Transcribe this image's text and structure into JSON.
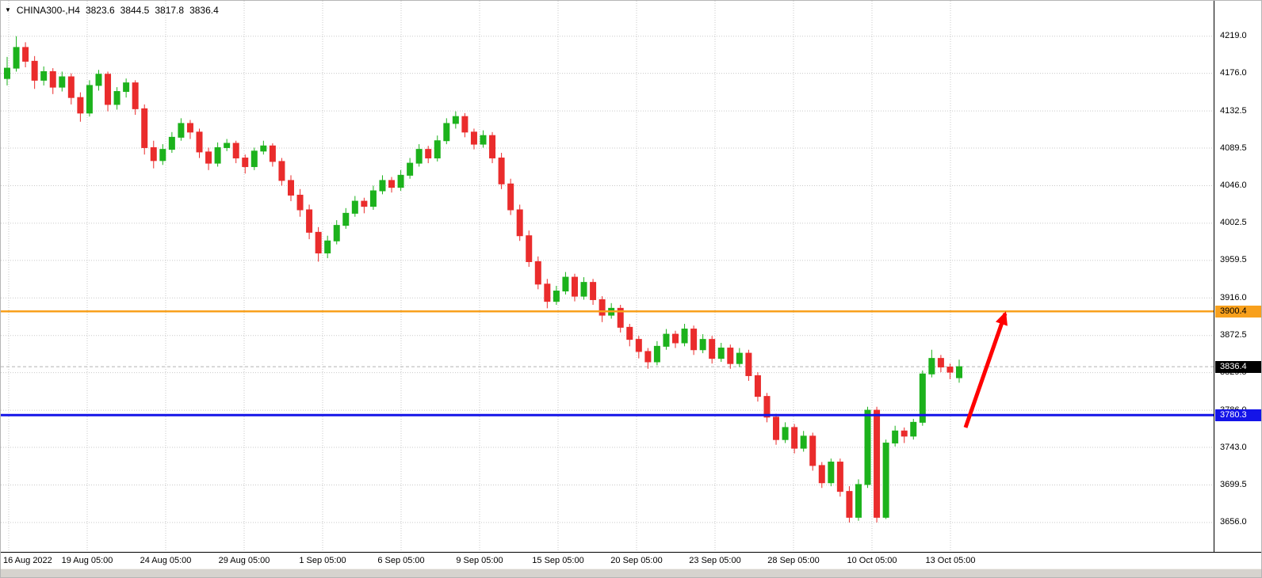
{
  "symbol_bar": {
    "dropdown_icon": "▼",
    "symbol": "CHINA300-,H4",
    "open": "3823.6",
    "high": "3844.5",
    "low": "3817.8",
    "close": "3836.4"
  },
  "price_axis": {
    "tags": {
      "resistance": {
        "value": "3900.4",
        "color": "#F8A01C",
        "text_color": "#000000"
      },
      "current": {
        "value": "3836.4",
        "color": "#000000",
        "text_color": "#ffffff"
      },
      "support": {
        "value": "3780.3",
        "color": "#1414E8",
        "text_color": "#ffffff"
      }
    }
  },
  "chart_data": {
    "type": "candlestick",
    "title": "CHINA300-,H4",
    "symbol": "CHINA300-",
    "timeframe": "H4",
    "current_bar": {
      "open": 3823.6,
      "high": 3844.5,
      "low": 3817.8,
      "close": 3836.4
    },
    "ylim": [
      3622,
      4260
    ],
    "grid": true,
    "up_color": "#1CB21C",
    "down_color": "#EA2C2C",
    "y_axis_ticks": [
      4219.0,
      4176.0,
      4132.5,
      4089.5,
      4046.0,
      4002.5,
      3959.5,
      3916.0,
      3872.5,
      3829.5,
      3786.0,
      3743.0,
      3699.5,
      3656.0
    ],
    "x_axis_ticks": [
      "16 Aug 2022",
      "19 Aug 05:00",
      "24 Aug 05:00",
      "29 Aug 05:00",
      "1 Sep 05:00",
      "6 Sep 05:00",
      "9 Sep 05:00",
      "15 Sep 05:00",
      "20 Sep 05:00",
      "23 Sep 05:00",
      "28 Sep 05:00",
      "10 Oct 05:00",
      "13 Oct 05:00"
    ],
    "levels": [
      {
        "tag": "current",
        "name": "bid-price-line",
        "price": 3836.4,
        "color": "#B4B4B4",
        "width": 1,
        "dash": "4,3"
      },
      {
        "tag": "resistance",
        "name": "resistance-line-orange",
        "price": 3900.4,
        "color": "#F8A01C",
        "width": 2.5,
        "dash": ""
      },
      {
        "tag": "support",
        "name": "support-line-blue",
        "price": 3780.3,
        "color": "#1414E8",
        "width": 3,
        "dash": ""
      }
    ],
    "annotation_arrow": {
      "from_price": 3766,
      "to_price": 3898,
      "color": "#FF0000"
    },
    "candles": [
      [
        4170,
        4195,
        4162,
        4182
      ],
      [
        4182,
        4219,
        4178,
        4206
      ],
      [
        4206,
        4212,
        4183,
        4190
      ],
      [
        4190,
        4196,
        4158,
        4168
      ],
      [
        4168,
        4184,
        4162,
        4178
      ],
      [
        4178,
        4182,
        4152,
        4160
      ],
      [
        4160,
        4178,
        4155,
        4172
      ],
      [
        4172,
        4176,
        4140,
        4148
      ],
      [
        4148,
        4154,
        4120,
        4130
      ],
      [
        4130,
        4168,
        4126,
        4162
      ],
      [
        4162,
        4180,
        4156,
        4175
      ],
      [
        4175,
        4178,
        4132,
        4140
      ],
      [
        4140,
        4160,
        4134,
        4155
      ],
      [
        4155,
        4170,
        4148,
        4165
      ],
      [
        4165,
        4168,
        4128,
        4135
      ],
      [
        4135,
        4140,
        4082,
        4090
      ],
      [
        4090,
        4098,
        4066,
        4075
      ],
      [
        4075,
        4094,
        4070,
        4088
      ],
      [
        4088,
        4108,
        4084,
        4102
      ],
      [
        4102,
        4124,
        4098,
        4118
      ],
      [
        4118,
        4122,
        4100,
        4108
      ],
      [
        4108,
        4112,
        4078,
        4085
      ],
      [
        4085,
        4090,
        4064,
        4072
      ],
      [
        4072,
        4096,
        4068,
        4090
      ],
      [
        4090,
        4100,
        4086,
        4095
      ],
      [
        4095,
        4098,
        4072,
        4078
      ],
      [
        4078,
        4082,
        4060,
        4068
      ],
      [
        4068,
        4090,
        4064,
        4086
      ],
      [
        4086,
        4098,
        4082,
        4092
      ],
      [
        4092,
        4095,
        4068,
        4074
      ],
      [
        4074,
        4078,
        4046,
        4052
      ],
      [
        4052,
        4058,
        4028,
        4035
      ],
      [
        4035,
        4042,
        4010,
        4018
      ],
      [
        4018,
        4024,
        3984,
        3992
      ],
      [
        3992,
        3998,
        3958,
        3968
      ],
      [
        3968,
        3988,
        3962,
        3982
      ],
      [
        3982,
        4006,
        3978,
        4000
      ],
      [
        4000,
        4020,
        3996,
        4014
      ],
      [
        4014,
        4034,
        4010,
        4028
      ],
      [
        4028,
        4032,
        4014,
        4022
      ],
      [
        4022,
        4046,
        4018,
        4040
      ],
      [
        4040,
        4058,
        4036,
        4052
      ],
      [
        4052,
        4056,
        4038,
        4044
      ],
      [
        4044,
        4064,
        4040,
        4058
      ],
      [
        4058,
        4078,
        4054,
        4072
      ],
      [
        4072,
        4094,
        4068,
        4088
      ],
      [
        4088,
        4092,
        4072,
        4078
      ],
      [
        4078,
        4104,
        4074,
        4098
      ],
      [
        4098,
        4124,
        4094,
        4118
      ],
      [
        4118,
        4132,
        4112,
        4126
      ],
      [
        4126,
        4130,
        4102,
        4108
      ],
      [
        4108,
        4112,
        4088,
        4094
      ],
      [
        4094,
        4110,
        4090,
        4104
      ],
      [
        4104,
        4108,
        4072,
        4078
      ],
      [
        4078,
        4084,
        4042,
        4048
      ],
      [
        4048,
        4054,
        4012,
        4018
      ],
      [
        4018,
        4024,
        3982,
        3988
      ],
      [
        3988,
        3994,
        3952,
        3958
      ],
      [
        3958,
        3964,
        3926,
        3932
      ],
      [
        3932,
        3938,
        3904,
        3912
      ],
      [
        3912,
        3930,
        3908,
        3924
      ],
      [
        3924,
        3946,
        3920,
        3940
      ],
      [
        3940,
        3944,
        3912,
        3918
      ],
      [
        3918,
        3940,
        3914,
        3934
      ],
      [
        3934,
        3938,
        3908,
        3914
      ],
      [
        3914,
        3918,
        3888,
        3896
      ],
      [
        3896,
        3910,
        3892,
        3904
      ],
      [
        3904,
        3908,
        3876,
        3882
      ],
      [
        3882,
        3886,
        3860,
        3868
      ],
      [
        3868,
        3872,
        3846,
        3854
      ],
      [
        3854,
        3858,
        3834,
        3842
      ],
      [
        3842,
        3866,
        3838,
        3860
      ],
      [
        3860,
        3880,
        3856,
        3874
      ],
      [
        3874,
        3878,
        3858,
        3864
      ],
      [
        3864,
        3886,
        3860,
        3880
      ],
      [
        3880,
        3884,
        3850,
        3856
      ],
      [
        3856,
        3874,
        3852,
        3868
      ],
      [
        3868,
        3872,
        3840,
        3846
      ],
      [
        3846,
        3864,
        3842,
        3858
      ],
      [
        3858,
        3862,
        3834,
        3840
      ],
      [
        3840,
        3858,
        3836,
        3852
      ],
      [
        3852,
        3856,
        3820,
        3826
      ],
      [
        3826,
        3830,
        3796,
        3802
      ],
      [
        3802,
        3806,
        3772,
        3778
      ],
      [
        3778,
        3782,
        3746,
        3752
      ],
      [
        3752,
        3772,
        3748,
        3766
      ],
      [
        3766,
        3770,
        3736,
        3742
      ],
      [
        3742,
        3762,
        3738,
        3756
      ],
      [
        3756,
        3760,
        3716,
        3722
      ],
      [
        3722,
        3726,
        3696,
        3702
      ],
      [
        3702,
        3730,
        3698,
        3726
      ],
      [
        3726,
        3730,
        3686,
        3692
      ],
      [
        3692,
        3698,
        3656,
        3662
      ],
      [
        3662,
        3706,
        3658,
        3700
      ],
      [
        3700,
        3790,
        3696,
        3786
      ],
      [
        3786,
        3790,
        3656,
        3662
      ],
      [
        3662,
        3752,
        3660,
        3748
      ],
      [
        3748,
        3768,
        3744,
        3762
      ],
      [
        3762,
        3766,
        3748,
        3756
      ],
      [
        3756,
        3776,
        3752,
        3772
      ],
      [
        3772,
        3832,
        3768,
        3828
      ],
      [
        3828,
        3856,
        3824,
        3846
      ],
      [
        3846,
        3850,
        3830,
        3836
      ],
      [
        3836,
        3840,
        3822,
        3830
      ],
      [
        3823.6,
        3844.5,
        3817.8,
        3836.4
      ]
    ]
  }
}
